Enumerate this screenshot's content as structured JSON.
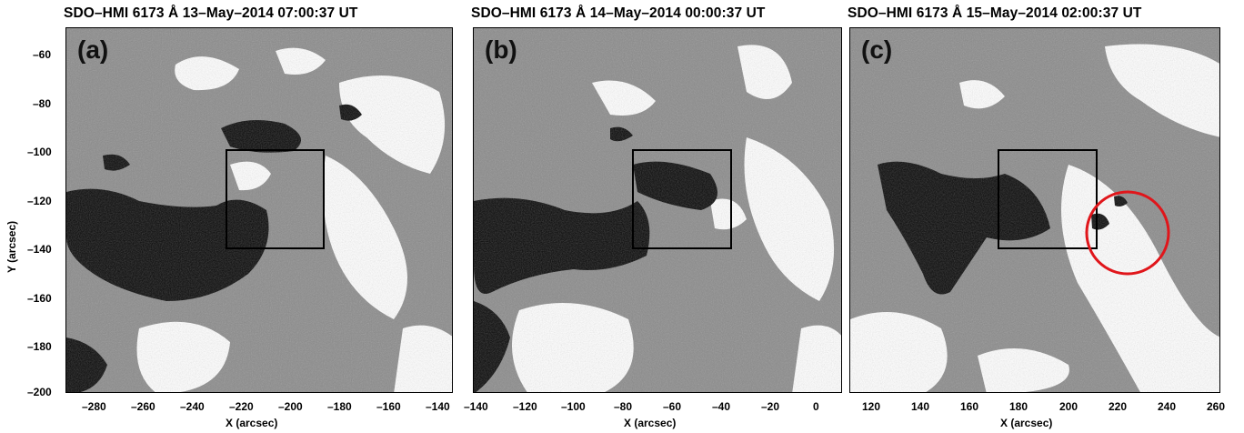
{
  "panels": [
    {
      "title": "SDO–HMI 6173 Å 13–May–2014 07:00:37 UT",
      "label": "(a)",
      "xticks": [
        "–280",
        "–260",
        "–240",
        "–220",
        "–200",
        "–180",
        "–160",
        "–140"
      ],
      "xlabel": "X (arcsec)"
    },
    {
      "title": "SDO–HMI 6173 Å 14–May–2014 00:00:37 UT",
      "label": "(b)",
      "xticks": [
        "–140",
        "–120",
        "–100",
        "–80",
        "–60",
        "–40",
        "–20",
        "0"
      ],
      "xlabel": "X (arcsec)"
    },
    {
      "title": "SDO–HMI 6173 Å 15–May–2014 02:00:37 UT",
      "label": "(c)",
      "xticks": [
        "120",
        "140",
        "160",
        "180",
        "200",
        "220",
        "240",
        "260"
      ],
      "xlabel": "X (arcsec)"
    }
  ],
  "yticks": [
    "–60",
    "–80",
    "–100",
    "–120",
    "–140",
    "–160",
    "–180",
    "–200"
  ],
  "ylabel": "Y (arcsec)",
  "colors": {
    "box": "#000000",
    "circle": "#e0161b",
    "background": "#8e8e8e"
  }
}
